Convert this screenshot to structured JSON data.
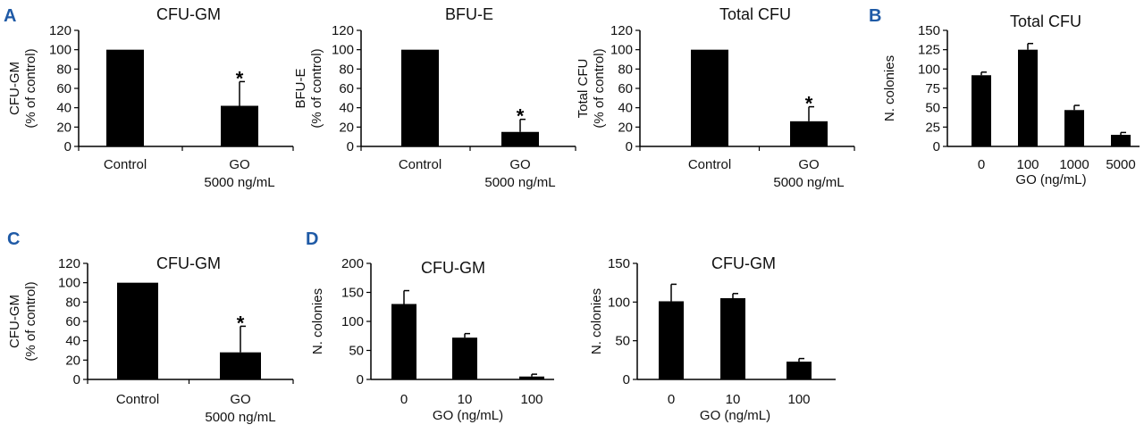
{
  "panels": [
    {
      "letter": "A"
    },
    {
      "letter": "B"
    },
    {
      "letter": "C"
    },
    {
      "letter": "D"
    }
  ],
  "colors": {
    "bar": "#000000",
    "axis": "#000000",
    "panel_label": "#1f5aa6"
  },
  "chart_data": [
    {
      "id": "A1",
      "panel": "A",
      "type": "bar",
      "title": "CFU-GM",
      "ylabel": [
        "CFU-GM",
        "(% of control)"
      ],
      "xlabel": "",
      "categories": [
        [
          "Control"
        ],
        [
          "GO",
          "5000 ng/mL"
        ]
      ],
      "values": [
        100,
        42
      ],
      "errors": [
        0,
        25
      ],
      "significance": [
        "",
        "*"
      ],
      "ylim": [
        0,
        120
      ],
      "yticks": [
        "0",
        "20",
        "40",
        "60",
        "80",
        "100",
        "120"
      ]
    },
    {
      "id": "A2",
      "panel": "A",
      "type": "bar",
      "title": "BFU-E",
      "ylabel": [
        "BFU-E",
        "(% of control)"
      ],
      "xlabel": "",
      "categories": [
        [
          "Control"
        ],
        [
          "GO",
          "5000 ng/mL"
        ]
      ],
      "values": [
        100,
        15
      ],
      "errors": [
        0,
        13
      ],
      "significance": [
        "",
        "*"
      ],
      "ylim": [
        0,
        120
      ],
      "yticks": [
        "0",
        "20",
        "40",
        "60",
        "80",
        "100",
        "120"
      ]
    },
    {
      "id": "A3",
      "panel": "A",
      "type": "bar",
      "title": "Total CFU",
      "ylabel": [
        "Total CFU",
        "(% of control)"
      ],
      "xlabel": "",
      "categories": [
        [
          "Control"
        ],
        [
          "GO",
          "5000 ng/mL"
        ]
      ],
      "values": [
        100,
        26
      ],
      "errors": [
        0,
        15
      ],
      "significance": [
        "",
        "*"
      ],
      "ylim": [
        0,
        120
      ],
      "yticks": [
        "0",
        "20",
        "40",
        "60",
        "80",
        "100",
        "120"
      ]
    },
    {
      "id": "B1",
      "panel": "B",
      "type": "bar",
      "title": "Total CFU",
      "ylabel": [
        "N. colonies"
      ],
      "xlabel": "GO (ng/mL)",
      "categories": [
        [
          "0"
        ],
        [
          "100"
        ],
        [
          "1000"
        ],
        [
          "5000"
        ]
      ],
      "values": [
        92,
        125,
        47,
        15
      ],
      "errors": [
        4,
        8,
        6,
        3
      ],
      "significance": [
        "",
        "",
        "",
        ""
      ],
      "ylim": [
        0,
        150
      ],
      "yticks": [
        "0",
        "25",
        "50",
        "75",
        "100",
        "125",
        "150"
      ]
    },
    {
      "id": "C1",
      "panel": "C",
      "type": "bar",
      "title": "CFU-GM",
      "ylabel": [
        "CFU-GM",
        "(% of control)"
      ],
      "xlabel": "",
      "categories": [
        [
          "Control"
        ],
        [
          "GO",
          "5000 ng/mL"
        ]
      ],
      "values": [
        100,
        28
      ],
      "errors": [
        0,
        27
      ],
      "significance": [
        "",
        "*"
      ],
      "ylim": [
        0,
        120
      ],
      "yticks": [
        "0",
        "20",
        "40",
        "60",
        "80",
        "100",
        "120"
      ]
    },
    {
      "id": "D1",
      "panel": "D",
      "type": "bar",
      "title": "CFU-GM",
      "ylabel": [
        "N. colonies"
      ],
      "xlabel": "GO (ng/mL)",
      "categories": [
        [
          "0"
        ],
        [
          "10"
        ],
        [
          "100"
        ]
      ],
      "values": [
        130,
        72,
        5
      ],
      "errors": [
        23,
        7,
        4
      ],
      "significance": [
        "",
        "",
        ""
      ],
      "ylim": [
        0,
        200
      ],
      "yticks": [
        "0",
        "50",
        "100",
        "150",
        "200"
      ]
    },
    {
      "id": "D2",
      "panel": "D",
      "type": "bar",
      "title": "CFU-GM",
      "ylabel": [
        "N. colonies"
      ],
      "xlabel": "GO (ng/mL)",
      "categories": [
        [
          "0"
        ],
        [
          "10"
        ],
        [
          "100"
        ]
      ],
      "values": [
        101,
        105,
        23
      ],
      "errors": [
        22,
        6,
        4
      ],
      "significance": [
        "",
        "",
        ""
      ],
      "ylim": [
        0,
        150
      ],
      "yticks": [
        "0",
        "50",
        "100",
        "150"
      ]
    }
  ]
}
